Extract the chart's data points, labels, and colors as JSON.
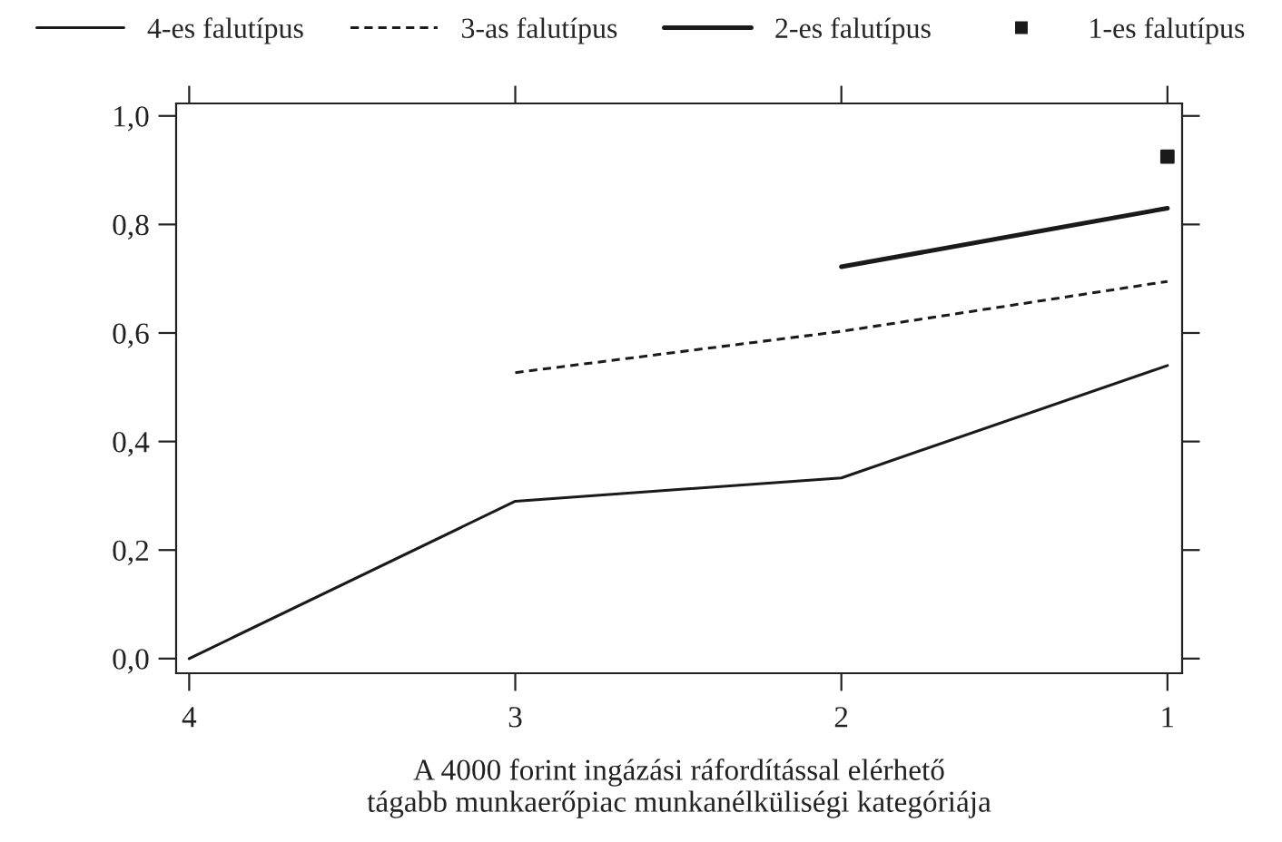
{
  "chart_data": {
    "type": "line",
    "xlabel": "A 4000 forint ingázási ráfordítással elérhető\ntágabb munkaerőpiac munkanélküliségi kategóriája",
    "series": [
      {
        "name": "4-es falutípus",
        "color": "#1a1a1a",
        "line_style": "solid",
        "x": [
          4,
          3,
          2,
          1
        ],
        "values": [
          0.0,
          0.29,
          0.333,
          0.54
        ]
      },
      {
        "name": "3-as falutípus",
        "color": "#1a1a1a",
        "line_style": "dashed",
        "x": [
          3,
          2,
          1
        ],
        "values": [
          0.527,
          0.603,
          0.695
        ]
      },
      {
        "name": "2-es falutípus",
        "color": "#1a1a1a",
        "line_style": "solid",
        "x": [
          2,
          1
        ],
        "values": [
          0.722,
          0.83
        ]
      },
      {
        "name": "1-es falutípus",
        "type": "scatter",
        "marker": "square",
        "color": "#1a1a1a",
        "x": [
          1
        ],
        "values": [
          0.925
        ]
      }
    ],
    "xlim": [
      4.04,
      0.955
    ],
    "xticks": [
      4,
      3,
      2,
      1
    ],
    "ylim": [
      -0.027,
      1.023
    ],
    "yticks": [
      {
        "value": 0,
        "label": "0,0"
      },
      {
        "value": 0.2,
        "label": "0,2"
      },
      {
        "value": 0.4,
        "label": "0,4"
      },
      {
        "value": 0.6,
        "label": "0,6"
      },
      {
        "value": 0.8,
        "label": "0,8"
      },
      {
        "value": 1.0,
        "label": "1,0"
      }
    ],
    "grid": false,
    "legend": "top"
  }
}
